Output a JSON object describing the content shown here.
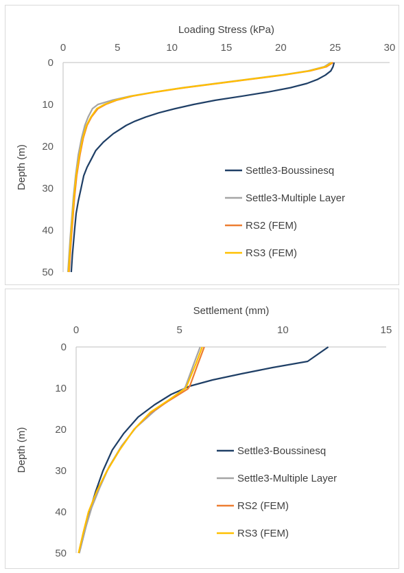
{
  "chart_data": [
    {
      "type": "line",
      "xlabel": "Loading Stress (kPa)",
      "ylabel": "Depth (m)",
      "xlim": [
        0,
        30
      ],
      "ylim": [
        0,
        50
      ],
      "x_ticks": [
        "0",
        "5",
        "10",
        "15",
        "20",
        "25",
        "30"
      ],
      "y_ticks": [
        "0",
        "10",
        "20",
        "30",
        "40",
        "50"
      ],
      "x_axis_position": "top",
      "y_axis_inverted": true,
      "grid": false,
      "legend_position": "right",
      "series": [
        {
          "name": "Settle3-Boussinesq",
          "color": "#1f3f66",
          "points": [
            [
              24.9,
              0
            ],
            [
              24.8,
              1
            ],
            [
              24.6,
              2
            ],
            [
              24.1,
              3
            ],
            [
              23.4,
              4
            ],
            [
              22.4,
              5
            ],
            [
              20.9,
              6
            ],
            [
              18.9,
              7
            ],
            [
              16.5,
              8
            ],
            [
              14.0,
              9
            ],
            [
              12.0,
              10
            ],
            [
              10.3,
              11
            ],
            [
              8.8,
              12
            ],
            [
              7.6,
              13
            ],
            [
              6.6,
              14
            ],
            [
              5.8,
              15
            ],
            [
              4.6,
              17
            ],
            [
              3.7,
              19
            ],
            [
              3.0,
              21
            ],
            [
              2.6,
              23
            ],
            [
              2.2,
              25
            ],
            [
              1.9,
              27
            ],
            [
              1.65,
              30
            ],
            [
              1.4,
              33
            ],
            [
              1.2,
              36
            ],
            [
              1.05,
              40
            ],
            [
              0.95,
              43
            ],
            [
              0.85,
              46
            ],
            [
              0.75,
              50
            ]
          ]
        },
        {
          "name": "Settle3-Multiple Layer",
          "color": "#a5a5a5",
          "points": [
            [
              24.6,
              0
            ],
            [
              24.0,
              1
            ],
            [
              22.5,
              2
            ],
            [
              20.0,
              3
            ],
            [
              17.0,
              4
            ],
            [
              14.0,
              5
            ],
            [
              11.0,
              6
            ],
            [
              8.5,
              7
            ],
            [
              6.2,
              8
            ],
            [
              4.5,
              9
            ],
            [
              3.2,
              10
            ],
            [
              2.7,
              11
            ],
            [
              2.3,
              13
            ],
            [
              2.0,
              15
            ],
            [
              1.7,
              18
            ],
            [
              1.4,
              22
            ],
            [
              1.15,
              27
            ],
            [
              0.95,
              32
            ],
            [
              0.8,
              37
            ],
            [
              0.65,
              42
            ],
            [
              0.55,
              46
            ],
            [
              0.45,
              50
            ]
          ]
        },
        {
          "name": "RS2 (FEM)",
          "color": "#ed7d31",
          "points": [
            [
              24.8,
              0
            ],
            [
              24.2,
              1
            ],
            [
              22.7,
              2
            ],
            [
              20.2,
              3
            ],
            [
              17.2,
              4
            ],
            [
              14.2,
              5
            ],
            [
              11.2,
              6
            ],
            [
              8.6,
              7
            ],
            [
              6.4,
              8
            ],
            [
              4.9,
              9
            ],
            [
              3.9,
              10
            ],
            [
              3.2,
              11
            ],
            [
              2.6,
              13
            ],
            [
              2.2,
              15
            ],
            [
              1.85,
              18
            ],
            [
              1.55,
              22
            ],
            [
              1.25,
              27
            ],
            [
              1.05,
              32
            ],
            [
              0.9,
              37
            ],
            [
              0.75,
              42
            ],
            [
              0.65,
              46
            ],
            [
              0.55,
              50
            ]
          ]
        },
        {
          "name": "RS3 (FEM)",
          "color": "#ffc000",
          "points": [
            [
              24.7,
              0
            ],
            [
              24.1,
              1
            ],
            [
              22.6,
              2
            ],
            [
              20.1,
              3
            ],
            [
              17.1,
              4
            ],
            [
              14.1,
              5
            ],
            [
              11.1,
              6
            ],
            [
              8.5,
              7
            ],
            [
              6.3,
              8
            ],
            [
              4.8,
              9
            ],
            [
              3.8,
              10
            ],
            [
              3.1,
              11
            ],
            [
              2.55,
              13
            ],
            [
              2.15,
              15
            ],
            [
              1.8,
              18
            ],
            [
              1.5,
              22
            ],
            [
              1.2,
              27
            ],
            [
              1.0,
              32
            ],
            [
              0.85,
              37
            ],
            [
              0.7,
              42
            ],
            [
              0.6,
              46
            ],
            [
              0.5,
              50
            ]
          ]
        }
      ]
    },
    {
      "type": "line",
      "xlabel": "Settlement (mm)",
      "ylabel": "Depth (m)",
      "xlim": [
        0,
        15
      ],
      "ylim": [
        0,
        50
      ],
      "x_ticks": [
        "0",
        "5",
        "10",
        "15"
      ],
      "y_ticks": [
        "0",
        "10",
        "20",
        "30",
        "40",
        "50"
      ],
      "x_axis_position": "top",
      "y_axis_inverted": true,
      "grid": false,
      "legend_position": "right",
      "series": [
        {
          "name": "Settle3-Boussinesq",
          "color": "#1f3f66",
          "points": [
            [
              12.2,
              0
            ],
            [
              11.2,
              3.5
            ],
            [
              9.5,
              5
            ],
            [
              8.0,
              6.5
            ],
            [
              6.6,
              8
            ],
            [
              5.5,
              9.5
            ],
            [
              4.6,
              11.5
            ],
            [
              3.8,
              14
            ],
            [
              3.0,
              17
            ],
            [
              2.3,
              21
            ],
            [
              1.75,
              25
            ],
            [
              1.3,
              30
            ],
            [
              0.95,
              35
            ],
            [
              0.65,
              40
            ],
            [
              0.4,
              45
            ],
            [
              0.15,
              50
            ]
          ]
        },
        {
          "name": "Settle3-Multiple Layer",
          "color": "#a5a5a5",
          "points": [
            [
              6.0,
              0
            ],
            [
              5.7,
              4
            ],
            [
              5.3,
              9.5
            ],
            [
              5.25,
              10
            ],
            [
              4.6,
              12.5
            ],
            [
              3.8,
              15.5
            ],
            [
              2.9,
              19.5
            ],
            [
              2.2,
              24
            ],
            [
              1.6,
              29
            ],
            [
              1.15,
              34
            ],
            [
              0.75,
              39
            ],
            [
              0.45,
              44
            ],
            [
              0.15,
              50
            ]
          ]
        },
        {
          "name": "RS2 (FEM)",
          "color": "#ed7d31",
          "points": [
            [
              6.2,
              0
            ],
            [
              5.9,
              4
            ],
            [
              5.5,
              9.5
            ],
            [
              5.4,
              10.2
            ],
            [
              4.5,
              13
            ],
            [
              3.6,
              16
            ],
            [
              2.8,
              20
            ],
            [
              2.1,
              25
            ],
            [
              1.5,
              30
            ],
            [
              1.0,
              35
            ],
            [
              0.6,
              40
            ],
            [
              0.35,
              45
            ],
            [
              0.12,
              50
            ]
          ]
        },
        {
          "name": "RS3 (FEM)",
          "color": "#ffc000",
          "points": [
            [
              6.1,
              0
            ],
            [
              5.8,
              4
            ],
            [
              5.35,
              9.5
            ],
            [
              5.3,
              10
            ],
            [
              4.5,
              12.8
            ],
            [
              3.6,
              15.8
            ],
            [
              2.8,
              20
            ],
            [
              2.1,
              25
            ],
            [
              1.5,
              30
            ],
            [
              1.0,
              35
            ],
            [
              0.6,
              40
            ],
            [
              0.35,
              45
            ],
            [
              0.12,
              50
            ]
          ]
        }
      ]
    }
  ]
}
